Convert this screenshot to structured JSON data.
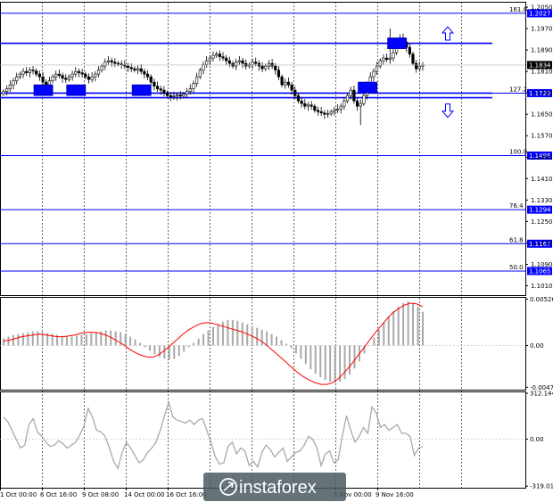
{
  "chart_data": [
    {
      "type": "candlestick",
      "ylim": [
        1.0975,
        1.207
      ],
      "y_ticks": [
        "1.2050",
        "1.1970",
        "1.1890",
        "1.1810",
        "1.1730",
        "1.1650",
        "1.1570",
        "1.1490",
        "1.1410",
        "1.1330",
        "1.1250",
        "1.1170",
        "1.1090",
        "1.1010"
      ],
      "last_price": "1.1834",
      "fib_levels": [
        {
          "label": "161.8",
          "price": 1.2027,
          "price_label": "1.2027"
        },
        {
          "label": "127.2",
          "price": 1.1729,
          "price_label": "1.1729"
        },
        {
          "label": "100.0",
          "price": 1.1496,
          "price_label": "1.1496"
        },
        {
          "label": "76.4",
          "price": 1.1294,
          "price_label": "1.1294"
        },
        {
          "label": "61.8",
          "price": 1.1167,
          "price_label": "1.1167"
        },
        {
          "label": "50.0",
          "price": 1.1065,
          "price_label": "1.1065"
        }
      ],
      "channel_lines": [
        1.1915,
        1.1729,
        1.1712
      ],
      "closes": [
        1.1735,
        1.1745,
        1.176,
        1.1775,
        1.179,
        1.18,
        1.181,
        1.1805,
        1.1815,
        1.1812,
        1.18,
        1.179,
        1.177,
        1.176,
        1.1775,
        1.179,
        1.18,
        1.1795,
        1.1785,
        1.178,
        1.179,
        1.18,
        1.181,
        1.1805,
        1.18,
        1.179,
        1.178,
        1.179,
        1.18,
        1.1815,
        1.183,
        1.1845,
        1.185,
        1.1845,
        1.184,
        1.1838,
        1.1835,
        1.183,
        1.1825,
        1.182,
        1.1815,
        1.182,
        1.181,
        1.18,
        1.179,
        1.177,
        1.1755,
        1.1745,
        1.174,
        1.173,
        1.172,
        1.1715,
        1.1718,
        1.1722,
        1.1718,
        1.1725,
        1.1735,
        1.1745,
        1.1765,
        1.179,
        1.1815,
        1.1835,
        1.185,
        1.186,
        1.187,
        1.1875,
        1.1865,
        1.186,
        1.185,
        1.184,
        1.183,
        1.1845,
        1.185,
        1.184,
        1.183,
        1.1835,
        1.1845,
        1.184,
        1.183,
        1.182,
        1.183,
        1.184,
        1.183,
        1.1815,
        1.179,
        1.176,
        1.177,
        1.176,
        1.174,
        1.172,
        1.17,
        1.169,
        1.168,
        1.1685,
        1.168,
        1.1665,
        1.166,
        1.1655,
        1.165,
        1.1652,
        1.166,
        1.1665,
        1.167,
        1.168,
        1.17,
        1.172,
        1.174,
        1.17,
        1.168,
        1.169,
        1.172,
        1.176,
        1.179,
        1.181,
        1.183,
        1.185,
        1.186,
        1.1855,
        1.186,
        1.188,
        1.191,
        1.1935,
        1.192,
        1.19,
        1.1875,
        1.184,
        1.182,
        1.183,
        1.1834
      ],
      "highs_extra": {
        "109": 1.161,
        "118": 1.197
      },
      "boxes": [
        {
          "index": 12,
          "price": 1.174
        },
        {
          "index": 22,
          "price": 1.174
        },
        {
          "index": 42,
          "price": 1.174
        },
        {
          "index": 111,
          "price": 1.175
        },
        {
          "index": 120,
          "price": 1.1915
        }
      ],
      "arrows": [
        {
          "direction": "up",
          "price": 1.195
        },
        {
          "direction": "down",
          "price": 1.1665
        }
      ]
    },
    {
      "type": "histogram-with-line",
      "ylim": [
        -0.005,
        0.0055
      ],
      "y_ticks": [
        "0.00526",
        "0.00",
        "-0.00473"
      ],
      "macd": [
        0.0008,
        0.001,
        0.0012,
        0.0013,
        0.0014,
        0.0015,
        0.0016,
        0.0016,
        0.0015,
        0.0014,
        0.0013,
        0.0012,
        0.0011,
        0.001,
        0.001,
        0.0011,
        0.0012,
        0.0013,
        0.0014,
        0.0015,
        0.0016,
        0.0017,
        0.0017,
        0.0016,
        0.0015,
        0.0013,
        0.001,
        0.0007,
        0.0003,
        -0.0002,
        -0.0006,
        -0.001,
        -0.0013,
        -0.0015,
        -0.0016,
        -0.0015,
        -0.0012,
        -0.0007,
        -0.0002,
        0.0003,
        0.0008,
        0.0013,
        0.0017,
        0.0021,
        0.0024,
        0.0027,
        0.0029,
        0.0029,
        0.0028,
        0.0026,
        0.0024,
        0.0022,
        0.002,
        0.0018,
        0.0016,
        0.0013,
        0.001,
        0.0006,
        0.0002,
        -0.0003,
        -0.0009,
        -0.0015,
        -0.0021,
        -0.0027,
        -0.0032,
        -0.0036,
        -0.0039,
        -0.0041,
        -0.0042,
        -0.0041,
        -0.0038,
        -0.0033,
        -0.0026,
        -0.0018,
        -0.0009,
        0.0,
        0.0009,
        0.0018,
        0.0026,
        0.0033,
        0.0039,
        0.0044,
        0.0048,
        0.005,
        0.0048,
        0.0044,
        0.0038
      ],
      "signal": [
        0.0005,
        0.0006,
        0.0008,
        0.001,
        0.0011,
        0.0012,
        0.0013,
        0.0012,
        0.0011,
        0.001,
        0.001,
        0.0011,
        0.0012,
        0.0014,
        0.0015,
        0.0015,
        0.0014,
        0.0012,
        0.0009,
        0.0005,
        0.0001,
        -0.0004,
        -0.0008,
        -0.0011,
        -0.0013,
        -0.0013,
        -0.001,
        -0.0005,
        0.0001,
        0.0007,
        0.0013,
        0.0018,
        0.0022,
        0.0025,
        0.0026,
        0.0025,
        0.0023,
        0.0021,
        0.0019,
        0.0017,
        0.0015,
        0.0012,
        0.0009,
        0.0005,
        0.0,
        -0.0006,
        -0.0012,
        -0.0018,
        -0.0024,
        -0.003,
        -0.0035,
        -0.0039,
        -0.0042,
        -0.0044,
        -0.0044,
        -0.0042,
        -0.0037,
        -0.003,
        -0.0022,
        -0.0013,
        -0.0004,
        0.0005,
        0.0014,
        0.0022,
        0.003,
        0.0037,
        0.0042,
        0.0046,
        0.0048,
        0.0047,
        0.0044
      ]
    },
    {
      "type": "line",
      "ylim": [
        -330,
        325
      ],
      "y_ticks": [
        "312.1442",
        "0.00",
        "-319.011"
      ],
      "values": [
        150,
        120,
        60,
        0,
        -60,
        -40,
        100,
        140,
        50,
        20,
        -20,
        -50,
        -40,
        -10,
        -30,
        -60,
        -40,
        -20,
        30,
        90,
        210,
        150,
        60,
        50,
        20,
        -60,
        -150,
        -200,
        -90,
        -20,
        -60,
        -110,
        -160,
        -140,
        -90,
        -60,
        -20,
        60,
        160,
        250,
        150,
        130,
        120,
        110,
        130,
        100,
        130,
        140,
        60,
        -20,
        -120,
        -170,
        -160,
        -50,
        -20,
        -100,
        -60,
        -80,
        -180,
        -150,
        -190,
        -90,
        -40,
        -70,
        -120,
        -90,
        -60,
        -150,
        -120,
        -90,
        -80,
        -40,
        20,
        0,
        -60,
        -180,
        -100,
        -80,
        -160,
        -140,
        20,
        160,
        60,
        -20,
        20,
        80,
        40,
        220,
        180,
        80,
        100,
        60,
        80,
        100,
        40,
        40,
        20,
        -110,
        -60,
        -50
      ]
    }
  ],
  "x_labels": [
    "1 Oct 00:00",
    "6 Oct 16:00",
    "9 Oct 08:00",
    "14 Oct 00:00",
    "16 Oct 16:00",
    "",
    "",
    "",
    "5 Nov 00:00",
    "9 Nov 16:00"
  ],
  "logo": {
    "text": "instaforex"
  },
  "colors": {
    "accent": "#0000ff",
    "ma": "#ff0000",
    "histogram": "#a9a9a9",
    "cci": "#a9a9a9"
  }
}
